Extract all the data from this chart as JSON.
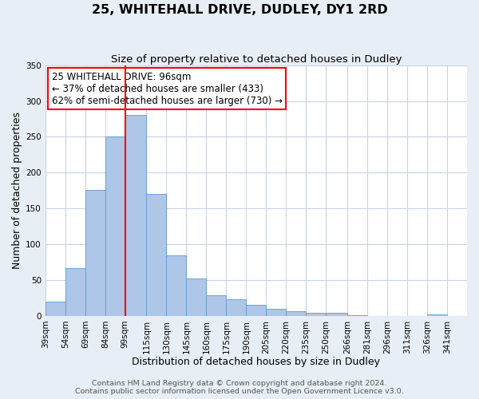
{
  "title": "25, WHITEHALL DRIVE, DUDLEY, DY1 2RD",
  "subtitle": "Size of property relative to detached houses in Dudley",
  "xlabel": "Distribution of detached houses by size in Dudley",
  "ylabel": "Number of detached properties",
  "footer_line1": "Contains HM Land Registry data © Crown copyright and database right 2024.",
  "footer_line2": "Contains public sector information licensed under the Open Government Licence v3.0.",
  "annotation_line1": "25 WHITEHALL DRIVE: 96sqm",
  "annotation_line2": "← 37% of detached houses are smaller (433)",
  "annotation_line3": "62% of semi-detached houses are larger (730) →",
  "bar_color": "#aec6e8",
  "bar_edge_color": "#5b9bd5",
  "vline_color": "red",
  "vline_x": 99,
  "categories": [
    "39sqm",
    "54sqm",
    "69sqm",
    "84sqm",
    "99sqm",
    "115sqm",
    "130sqm",
    "145sqm",
    "160sqm",
    "175sqm",
    "190sqm",
    "205sqm",
    "220sqm",
    "235sqm",
    "250sqm",
    "266sqm",
    "281sqm",
    "296sqm",
    "311sqm",
    "326sqm",
    "341sqm"
  ],
  "bin_edges": [
    39,
    54,
    69,
    84,
    99,
    115,
    130,
    145,
    160,
    175,
    190,
    205,
    220,
    235,
    250,
    266,
    281,
    296,
    311,
    326,
    341,
    356
  ],
  "values": [
    20,
    67,
    176,
    250,
    281,
    170,
    85,
    52,
    29,
    23,
    15,
    10,
    6,
    4,
    4,
    1,
    0,
    0,
    0,
    2,
    0
  ],
  "ylim": [
    0,
    350
  ],
  "yticks": [
    0,
    50,
    100,
    150,
    200,
    250,
    300,
    350
  ],
  "background_color": "#e8eef5",
  "plot_bg_color": "#ffffff",
  "grid_color": "#c8d4e4",
  "annotation_box_edge_color": "red",
  "annotation_box_face_color": "white",
  "title_fontsize": 11.5,
  "subtitle_fontsize": 9.5,
  "axis_label_fontsize": 9,
  "tick_fontsize": 7.5,
  "annotation_fontsize": 8.5,
  "footer_fontsize": 6.8
}
